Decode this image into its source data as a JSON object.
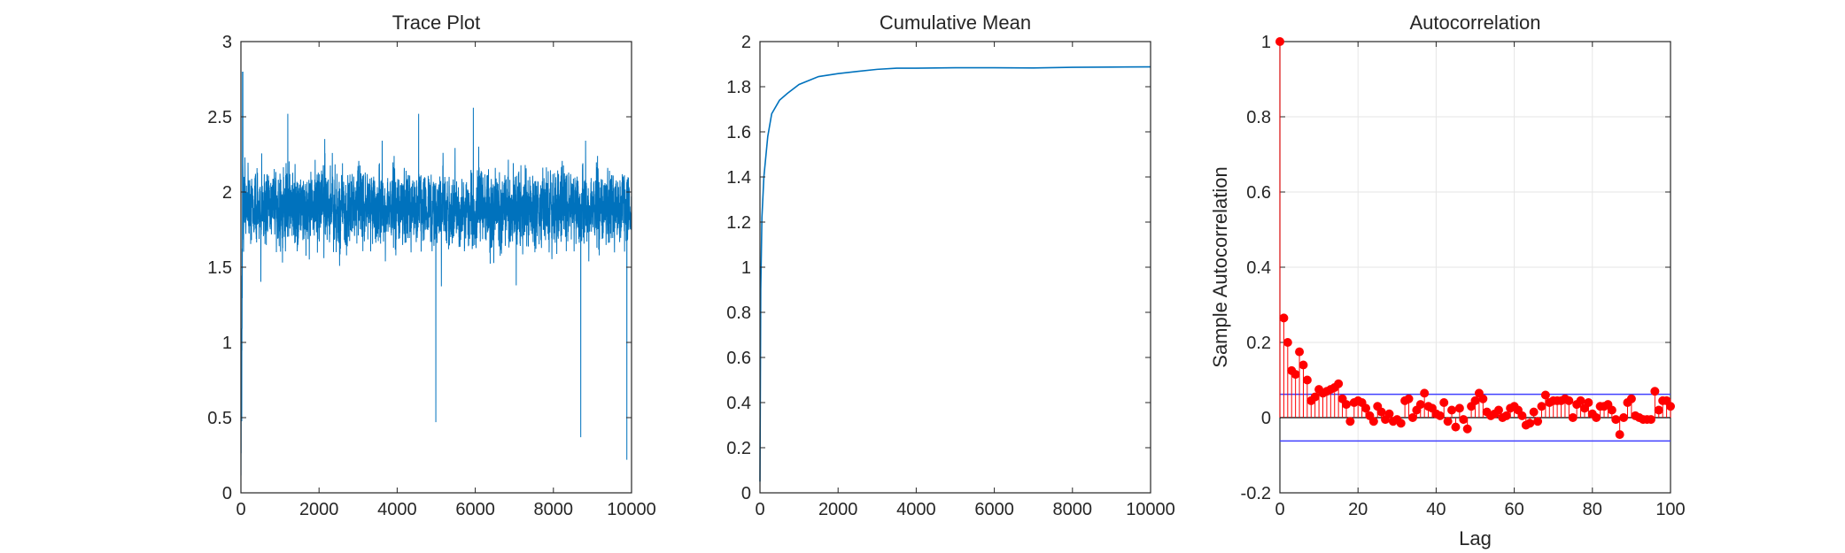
{
  "figure": {
    "background": "#ffffff",
    "axis_color": "#262626",
    "grid_color": "#e6e6e6"
  },
  "chart_data": [
    {
      "type": "line",
      "title": "Trace Plot",
      "xlabel": "",
      "ylabel": "",
      "xlim": [
        0,
        10000
      ],
      "ylim": [
        0,
        3
      ],
      "xticks": [
        0,
        2000,
        4000,
        6000,
        8000,
        10000
      ],
      "yticks": [
        0,
        0.5,
        1,
        1.5,
        2,
        2.5,
        3
      ],
      "xtick_labels": [
        "0",
        "2000",
        "4000",
        "6000",
        "8000",
        "10000"
      ],
      "ytick_labels": [
        "0",
        "0.5",
        "1",
        "1.5",
        "2",
        "2.5",
        "3"
      ],
      "grid": false,
      "color": "#0072bd",
      "n_samples": 10000,
      "summary": {
        "start_value": 0.12,
        "early_peak": 2.8,
        "mean": 1.89,
        "typical_min": 1.3,
        "typical_max": 2.5,
        "low_spikes": [
          [
            4990,
            0.47
          ],
          [
            8700,
            0.37
          ],
          [
            9880,
            0.22
          ]
        ],
        "high_spikes": [
          [
            5950,
            2.56
          ],
          [
            4550,
            2.52
          ],
          [
            1200,
            2.52
          ]
        ]
      }
    },
    {
      "type": "line",
      "title": "Cumulative Mean",
      "xlabel": "",
      "ylabel": "",
      "xlim": [
        0,
        10000
      ],
      "ylim": [
        0,
        2
      ],
      "xticks": [
        0,
        2000,
        4000,
        6000,
        8000,
        10000
      ],
      "yticks": [
        0,
        0.2,
        0.4,
        0.6,
        0.8,
        1,
        1.2,
        1.4,
        1.6,
        1.8,
        2
      ],
      "xtick_labels": [
        "0",
        "2000",
        "4000",
        "6000",
        "8000",
        "10000"
      ],
      "ytick_labels": [
        "0",
        "0.2",
        "0.4",
        "0.6",
        "0.8",
        "1",
        "1.2",
        "1.4",
        "1.6",
        "1.8",
        "2"
      ],
      "grid": false,
      "color": "#0072bd",
      "x": [
        0,
        20,
        50,
        100,
        200,
        300,
        500,
        700,
        1000,
        1500,
        2000,
        2500,
        3000,
        3500,
        4000,
        5000,
        6000,
        7000,
        8000,
        9000,
        10000
      ],
      "y": [
        0.05,
        0.9,
        1.22,
        1.4,
        1.58,
        1.68,
        1.74,
        1.77,
        1.81,
        1.845,
        1.858,
        1.868,
        1.877,
        1.882,
        1.882,
        1.884,
        1.884,
        1.883,
        1.886,
        1.887,
        1.888
      ]
    },
    {
      "type": "stem",
      "title": "Autocorrelation",
      "xlabel": "Lag",
      "ylabel": "Sample Autocorrelation",
      "xlim": [
        0,
        100
      ],
      "ylim": [
        -0.2,
        1
      ],
      "xticks": [
        0,
        20,
        40,
        60,
        80,
        100
      ],
      "yticks": [
        -0.2,
        0,
        0.2,
        0.4,
        0.6,
        0.8,
        1
      ],
      "xtick_labels": [
        "0",
        "20",
        "40",
        "60",
        "80",
        "100"
      ],
      "ytick_labels": [
        "-0.2",
        "0",
        "0.2",
        "0.4",
        "0.6",
        "0.8",
        "1"
      ],
      "grid": true,
      "color": "#ff0000",
      "bound_color": "#4040ff",
      "confidence_bounds": [
        0.062,
        -0.062
      ],
      "lags": [
        0,
        1,
        2,
        3,
        4,
        5,
        6,
        7,
        8,
        9,
        10,
        11,
        12,
        13,
        14,
        15,
        16,
        17,
        18,
        19,
        20,
        21,
        22,
        23,
        24,
        25,
        26,
        27,
        28,
        29,
        30,
        31,
        32,
        33,
        34,
        35,
        36,
        37,
        38,
        39,
        40,
        41,
        42,
        43,
        44,
        45,
        46,
        47,
        48,
        49,
        50,
        51,
        52,
        53,
        54,
        55,
        56,
        57,
        58,
        59,
        60,
        61,
        62,
        63,
        64,
        65,
        66,
        67,
        68,
        69,
        70,
        71,
        72,
        73,
        74,
        75,
        76,
        77,
        78,
        79,
        80,
        81,
        82,
        83,
        84,
        85,
        86,
        87,
        88,
        89,
        90,
        91,
        92,
        93,
        94,
        95,
        96,
        97,
        98,
        99,
        100
      ],
      "acf": [
        1.0,
        0.265,
        0.2,
        0.125,
        0.115,
        0.175,
        0.14,
        0.1,
        0.045,
        0.055,
        0.075,
        0.065,
        0.07,
        0.075,
        0.08,
        0.09,
        0.05,
        0.035,
        -0.01,
        0.04,
        0.045,
        0.04,
        0.025,
        0.005,
        -0.01,
        0.03,
        0.015,
        -0.005,
        0.01,
        -0.01,
        -0.005,
        -0.015,
        0.045,
        0.05,
        0.0,
        0.02,
        0.035,
        0.065,
        0.03,
        0.025,
        0.01,
        0.005,
        0.04,
        -0.01,
        0.02,
        -0.025,
        0.025,
        -0.005,
        -0.03,
        0.03,
        0.045,
        0.065,
        0.05,
        0.015,
        0.005,
        0.01,
        0.02,
        0.0,
        0.005,
        0.025,
        0.03,
        0.02,
        0.005,
        -0.02,
        -0.015,
        0.015,
        -0.01,
        0.03,
        0.06,
        0.04,
        0.045,
        0.045,
        0.045,
        0.05,
        0.045,
        0.0,
        0.035,
        0.045,
        0.025,
        0.04,
        0.01,
        0.0,
        0.03,
        0.03,
        0.035,
        0.02,
        -0.005,
        -0.045,
        0.0,
        0.04,
        0.05,
        0.005,
        0.0,
        -0.005,
        -0.005,
        -0.005,
        0.07,
        0.02,
        0.045,
        0.045,
        0.03
      ]
    }
  ]
}
